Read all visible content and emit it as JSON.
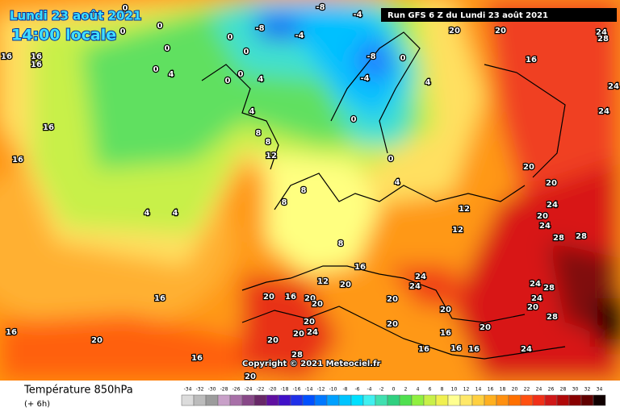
{
  "header": {
    "date": "Lundi 23 août 2021",
    "time": "14:00 locale",
    "run": "Run GFS 6 Z du Lundi 23 août 2021"
  },
  "copyright": "Copyright © 2021 Meteociel.fr",
  "footer": {
    "title": "Température 850hPa",
    "lead": "(+ 6h)"
  },
  "scale": {
    "values": [
      -34,
      -32,
      -30,
      -28,
      -26,
      -24,
      -22,
      -20,
      -18,
      -16,
      -14,
      -12,
      -10,
      -8,
      -6,
      -4,
      -2,
      0,
      2,
      4,
      6,
      8,
      10,
      12,
      14,
      16,
      18,
      20,
      22,
      24,
      26,
      28,
      30,
      32,
      34
    ],
    "colors": [
      "#dcdcdc",
      "#bcbcbc",
      "#9c9c9c",
      "#c8a0c8",
      "#a870a8",
      "#884888",
      "#682868",
      "#6010a0",
      "#4010c8",
      "#2030e8",
      "#0050ff",
      "#0078ff",
      "#00a0ff",
      "#00c4ff",
      "#00e0ff",
      "#40f0f0",
      "#40e0b0",
      "#30d080",
      "#50e050",
      "#90f040",
      "#c8f048",
      "#f0f050",
      "#ffff90",
      "#ffe868",
      "#ffd040",
      "#ffb020",
      "#ff9010",
      "#ff7000",
      "#ff5010",
      "#f03018",
      "#d01818",
      "#b00808",
      "#880000",
      "#600000",
      "#100000"
    ]
  },
  "map_labels": [
    16,
    16,
    16,
    16,
    16,
    0,
    0,
    0,
    0,
    0,
    4,
    0,
    0,
    0,
    0,
    4,
    4,
    8,
    8,
    12,
    4,
    4,
    -8,
    -8,
    -4,
    -4,
    -8,
    -4,
    0,
    4,
    0,
    0,
    4,
    20,
    20,
    16,
    24,
    28,
    24,
    24,
    20,
    20,
    24,
    20,
    24,
    28,
    28,
    12,
    12,
    8,
    8,
    8,
    16,
    12,
    20,
    20,
    24,
    24,
    20,
    24,
    28,
    24,
    20,
    28,
    16,
    16,
    20,
    16,
    20,
    16,
    20,
    20,
    20,
    24,
    20,
    20,
    28,
    20,
    20,
    16,
    16,
    16,
    24,
    20,
    16
  ]
}
